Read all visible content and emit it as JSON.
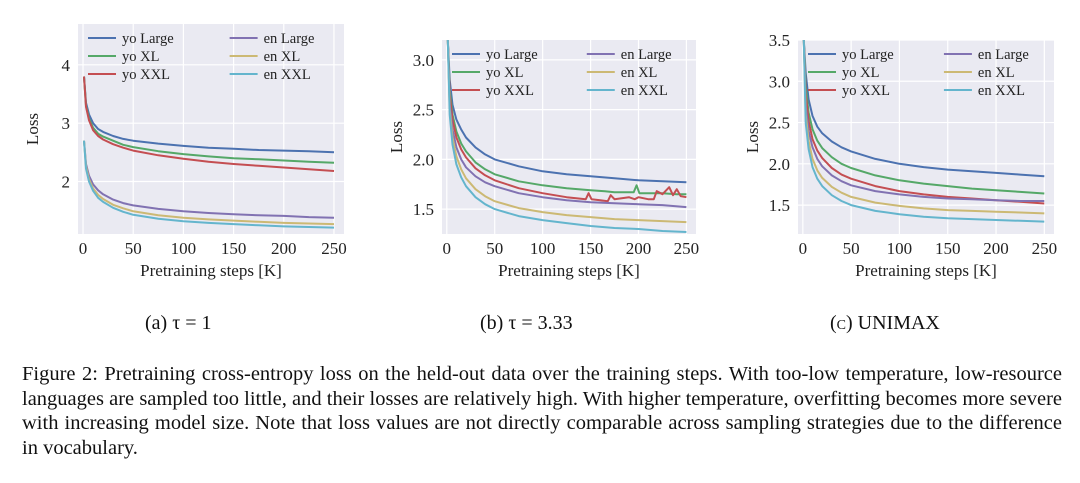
{
  "figure": {
    "caption_label": "Figure 2:",
    "caption_text": "Pretraining cross-entropy loss on the held-out data over the training steps. With too-low temperature, low-resource languages are sampled too little, and their losses are relatively high. With higher temperature, overfitting becomes more severe with increasing model size. Note that loss values are not directly comparable across sampling strategies due to the difference in vocabulary."
  },
  "series_colors": {
    "yo Large": "#4c72b0",
    "yo XL": "#55a868",
    "yo XXL": "#c44e52",
    "en Large": "#8172b2",
    "en XL": "#ccb974",
    "en XXL": "#64b5cd"
  },
  "chart_data": [
    {
      "type": "line",
      "subcaption": "(a) τ = 1",
      "xlabel": "Pretraining steps [K]",
      "ylabel": "Loss",
      "xlim": [
        -5,
        260
      ],
      "ylim": [
        1.1,
        4.7
      ],
      "xticks": [
        0,
        50,
        100,
        150,
        200,
        250
      ],
      "yticks": [
        2,
        3,
        4
      ],
      "grid": true,
      "legend_position": "top",
      "series": [
        {
          "name": "yo Large",
          "x": [
            1,
            3,
            6,
            10,
            15,
            20,
            30,
            40,
            50,
            75,
            100,
            125,
            150,
            175,
            200,
            225,
            250
          ],
          "y": [
            3.8,
            3.35,
            3.15,
            3.0,
            2.9,
            2.85,
            2.78,
            2.73,
            2.7,
            2.65,
            2.61,
            2.58,
            2.56,
            2.54,
            2.53,
            2.52,
            2.5
          ]
        },
        {
          "name": "yo XL",
          "x": [
            1,
            3,
            6,
            10,
            15,
            20,
            30,
            40,
            50,
            75,
            100,
            125,
            150,
            175,
            200,
            225,
            250
          ],
          "y": [
            3.8,
            3.3,
            3.08,
            2.92,
            2.82,
            2.77,
            2.7,
            2.63,
            2.59,
            2.52,
            2.47,
            2.43,
            2.4,
            2.38,
            2.36,
            2.34,
            2.32
          ]
        },
        {
          "name": "yo XXL",
          "x": [
            1,
            3,
            6,
            10,
            15,
            20,
            30,
            40,
            50,
            75,
            100,
            125,
            150,
            175,
            200,
            225,
            250
          ],
          "y": [
            3.8,
            3.28,
            3.05,
            2.88,
            2.78,
            2.72,
            2.64,
            2.58,
            2.53,
            2.45,
            2.39,
            2.34,
            2.3,
            2.27,
            2.24,
            2.21,
            2.18
          ]
        },
        {
          "name": "en Large",
          "x": [
            1,
            3,
            6,
            10,
            15,
            20,
            30,
            40,
            50,
            75,
            100,
            125,
            150,
            175,
            200,
            225,
            250
          ],
          "y": [
            2.7,
            2.3,
            2.1,
            1.95,
            1.85,
            1.78,
            1.69,
            1.63,
            1.59,
            1.53,
            1.49,
            1.46,
            1.44,
            1.42,
            1.41,
            1.39,
            1.38
          ]
        },
        {
          "name": "en XL",
          "x": [
            1,
            3,
            6,
            10,
            15,
            20,
            30,
            40,
            50,
            75,
            100,
            125,
            150,
            175,
            200,
            225,
            250
          ],
          "y": [
            2.7,
            2.26,
            2.04,
            1.88,
            1.77,
            1.7,
            1.6,
            1.54,
            1.49,
            1.42,
            1.38,
            1.35,
            1.33,
            1.31,
            1.29,
            1.28,
            1.27
          ]
        },
        {
          "name": "en XXL",
          "x": [
            1,
            3,
            6,
            10,
            15,
            20,
            30,
            40,
            50,
            75,
            100,
            125,
            150,
            175,
            200,
            225,
            250
          ],
          "y": [
            2.7,
            2.22,
            2.0,
            1.84,
            1.72,
            1.65,
            1.55,
            1.48,
            1.43,
            1.36,
            1.32,
            1.29,
            1.27,
            1.25,
            1.23,
            1.22,
            1.21
          ]
        }
      ]
    },
    {
      "type": "line",
      "subcaption": "(b) τ = 3.33",
      "xlabel": "Pretraining steps [K]",
      "ylabel": "Loss",
      "xlim": [
        -5,
        260
      ],
      "ylim": [
        1.25,
        3.2
      ],
      "xticks": [
        0,
        50,
        100,
        150,
        200,
        250
      ],
      "yticks": [
        1.5,
        2.0,
        2.5,
        3.0
      ],
      "grid": true,
      "legend_position": "top",
      "series": [
        {
          "name": "yo Large",
          "x": [
            1,
            3,
            6,
            10,
            15,
            20,
            30,
            40,
            50,
            75,
            100,
            125,
            150,
            175,
            200,
            225,
            250
          ],
          "y": [
            3.2,
            2.8,
            2.55,
            2.4,
            2.3,
            2.22,
            2.12,
            2.05,
            2.0,
            1.93,
            1.88,
            1.85,
            1.83,
            1.81,
            1.79,
            1.78,
            1.77
          ]
        },
        {
          "name": "yo XL",
          "x": [
            1,
            3,
            6,
            10,
            15,
            20,
            30,
            40,
            50,
            75,
            100,
            125,
            150,
            165,
            175,
            185,
            195,
            198,
            201,
            205,
            215,
            225,
            240,
            250
          ],
          "y": [
            3.2,
            2.7,
            2.45,
            2.28,
            2.16,
            2.08,
            1.97,
            1.9,
            1.85,
            1.78,
            1.74,
            1.71,
            1.69,
            1.68,
            1.67,
            1.67,
            1.67,
            1.74,
            1.66,
            1.66,
            1.66,
            1.66,
            1.65,
            1.65
          ]
        },
        {
          "name": "yo XXL",
          "x": [
            1,
            3,
            6,
            10,
            15,
            20,
            30,
            40,
            50,
            75,
            100,
            125,
            145,
            148,
            151,
            160,
            168,
            171,
            175,
            190,
            196,
            200,
            210,
            216,
            219,
            225,
            232,
            236,
            240,
            244,
            250
          ],
          "y": [
            3.2,
            2.65,
            2.4,
            2.22,
            2.1,
            2.02,
            1.91,
            1.84,
            1.79,
            1.71,
            1.66,
            1.62,
            1.6,
            1.66,
            1.6,
            1.59,
            1.58,
            1.64,
            1.6,
            1.62,
            1.6,
            1.62,
            1.6,
            1.6,
            1.68,
            1.65,
            1.72,
            1.64,
            1.7,
            1.63,
            1.62
          ]
        },
        {
          "name": "en Large",
          "x": [
            1,
            3,
            6,
            10,
            15,
            20,
            30,
            40,
            50,
            75,
            100,
            125,
            150,
            175,
            200,
            225,
            250
          ],
          "y": [
            3.2,
            2.55,
            2.3,
            2.12,
            2.0,
            1.92,
            1.83,
            1.77,
            1.73,
            1.66,
            1.62,
            1.59,
            1.57,
            1.56,
            1.55,
            1.54,
            1.52
          ]
        },
        {
          "name": "en XL",
          "x": [
            1,
            3,
            6,
            10,
            15,
            20,
            30,
            40,
            50,
            75,
            100,
            125,
            150,
            175,
            200,
            225,
            250
          ],
          "y": [
            3.2,
            2.5,
            2.22,
            2.03,
            1.9,
            1.81,
            1.7,
            1.63,
            1.58,
            1.51,
            1.47,
            1.44,
            1.42,
            1.4,
            1.39,
            1.38,
            1.37
          ]
        },
        {
          "name": "en XXL",
          "x": [
            1,
            3,
            6,
            10,
            15,
            20,
            30,
            40,
            50,
            75,
            100,
            125,
            150,
            175,
            200,
            225,
            250
          ],
          "y": [
            3.2,
            2.45,
            2.15,
            1.95,
            1.82,
            1.73,
            1.62,
            1.55,
            1.5,
            1.43,
            1.39,
            1.36,
            1.33,
            1.31,
            1.3,
            1.28,
            1.27
          ]
        }
      ]
    },
    {
      "type": "line",
      "subcaption": "(c) UNIMAX",
      "xlabel": "Pretraining steps [K]",
      "ylabel": "Loss",
      "xlim": [
        -5,
        260
      ],
      "ylim": [
        1.15,
        3.5
      ],
      "xticks": [
        0,
        50,
        100,
        150,
        200,
        250
      ],
      "yticks": [
        1.5,
        2.0,
        2.5,
        3.0,
        3.5
      ],
      "grid": true,
      "legend_position": "top",
      "series": [
        {
          "name": "yo Large",
          "x": [
            1,
            3,
            6,
            10,
            15,
            20,
            30,
            40,
            50,
            75,
            100,
            125,
            150,
            175,
            200,
            225,
            250
          ],
          "y": [
            3.5,
            3.1,
            2.78,
            2.58,
            2.45,
            2.37,
            2.27,
            2.2,
            2.15,
            2.06,
            2.0,
            1.96,
            1.93,
            1.91,
            1.89,
            1.87,
            1.85
          ]
        },
        {
          "name": "yo XL",
          "x": [
            1,
            3,
            6,
            10,
            15,
            20,
            30,
            40,
            50,
            75,
            100,
            125,
            150,
            175,
            200,
            225,
            250
          ],
          "y": [
            3.5,
            2.95,
            2.62,
            2.42,
            2.28,
            2.19,
            2.08,
            2.0,
            1.95,
            1.86,
            1.8,
            1.76,
            1.73,
            1.7,
            1.68,
            1.66,
            1.64
          ]
        },
        {
          "name": "yo XXL",
          "x": [
            1,
            3,
            6,
            10,
            15,
            20,
            30,
            40,
            50,
            75,
            100,
            125,
            150,
            175,
            200,
            225,
            250
          ],
          "y": [
            3.5,
            2.85,
            2.52,
            2.3,
            2.16,
            2.07,
            1.95,
            1.87,
            1.82,
            1.73,
            1.67,
            1.63,
            1.6,
            1.58,
            1.56,
            1.54,
            1.52
          ]
        },
        {
          "name": "en Large",
          "x": [
            1,
            3,
            6,
            10,
            15,
            20,
            30,
            40,
            50,
            75,
            100,
            125,
            150,
            175,
            200,
            225,
            250
          ],
          "y": [
            3.5,
            2.7,
            2.4,
            2.2,
            2.06,
            1.97,
            1.86,
            1.79,
            1.74,
            1.67,
            1.63,
            1.6,
            1.58,
            1.57,
            1.56,
            1.55,
            1.55
          ]
        },
        {
          "name": "en XL",
          "x": [
            1,
            3,
            6,
            10,
            15,
            20,
            30,
            40,
            50,
            75,
            100,
            125,
            150,
            175,
            200,
            225,
            250
          ],
          "y": [
            3.5,
            2.6,
            2.28,
            2.06,
            1.92,
            1.83,
            1.72,
            1.65,
            1.6,
            1.53,
            1.49,
            1.46,
            1.44,
            1.43,
            1.42,
            1.41,
            1.4
          ]
        },
        {
          "name": "en XXL",
          "x": [
            1,
            3,
            6,
            10,
            15,
            20,
            30,
            40,
            50,
            75,
            100,
            125,
            150,
            175,
            200,
            225,
            250
          ],
          "y": [
            3.5,
            2.5,
            2.18,
            1.96,
            1.82,
            1.73,
            1.62,
            1.55,
            1.5,
            1.43,
            1.39,
            1.36,
            1.34,
            1.33,
            1.32,
            1.31,
            1.3
          ]
        }
      ]
    }
  ]
}
